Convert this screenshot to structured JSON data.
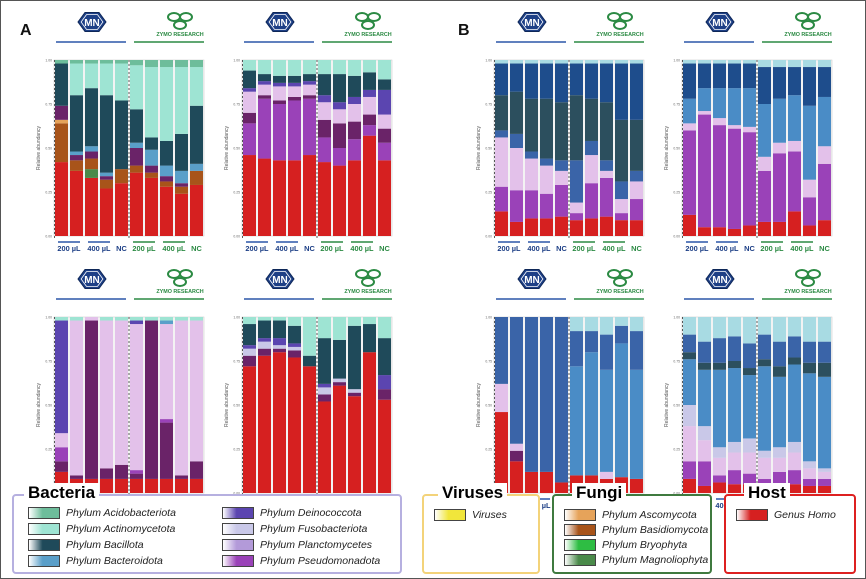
{
  "panel_labels": [
    "A",
    "B"
  ],
  "brand_labels": {
    "mn": "MN",
    "zymo": "ZYMO RESEARCH"
  },
  "ylabel": "Relative abundancy",
  "groups": [
    "200 µL",
    "400 µL",
    "NC",
    "200 µL",
    "400 µL",
    "NC"
  ],
  "colors": {
    "Phylum Acidobacteriota": "#6dbd9b",
    "Phylum Actinomycetota": "#9ee4d3",
    "Phylum Bacillota": "#1f4a5a",
    "Phylum Bacteroidota": "#5a9fc9",
    "Phylum Deinococcota": "#5b45b0",
    "Phylum Fusobacteriota": "#c9c8e8",
    "Phylum Planctomycetes": "#b39ad9",
    "Phylum Pseudomonadota": "#6a2368",
    "Phylum Pseudomonadota-2": "#9a42b8",
    "Phylum Pseudomonadota-3": "#e3c1ea",
    "Viruses": "#f1e63b",
    "Phylum Ascomycota": "#e6a35a",
    "Phylum Basidiomycota": "#a8541a",
    "Phylum Bryophyta": "#2ebd43",
    "Phylum Magnoliophyta": "#4a8a4a",
    "Genus Homo": "#d62020",
    "Fungi-1": "#1e4d8c",
    "Fungi-2": "#3a64a8",
    "Fungi-3": "#4a8cc6",
    "Fungi-4": "#2c4f5e",
    "Fungi-5": "#a8dbe3"
  },
  "legend": {
    "bacteria": {
      "title": "Bacteria",
      "items": [
        {
          "label": "Phylum Acidobacteriota",
          "color": "#6dbd9b"
        },
        {
          "label": "Phylum Actinomycetota",
          "color": "#9ee4d3"
        },
        {
          "label": "Phylum Bacillota",
          "color": "#1f4a5a"
        },
        {
          "label": "Phylum Bacteroidota",
          "color": "#5a9fc9"
        },
        {
          "label": "Phylum Deinococcota",
          "color": "#5b45b0"
        },
        {
          "label": "Phylum Fusobacteriota",
          "color": "#c9c8e8"
        },
        {
          "label": "Phylum Planctomycetes",
          "color": "#b39ad9"
        },
        {
          "label": "Phylum Pseudomonadota",
          "color": "#9a42b8"
        }
      ]
    },
    "viruses": {
      "title": "Viruses",
      "items": [
        {
          "label": "Viruses",
          "color": "#f1e63b"
        }
      ]
    },
    "fungi": {
      "title": "Fungi",
      "items": [
        {
          "label": "Phylum Ascomycota",
          "color": "#e6a35a"
        },
        {
          "label": "Phylum Basidiomycota",
          "color": "#a8541a"
        },
        {
          "label": "Phylum Bryophyta",
          "color": "#2ebd43"
        },
        {
          "label": "Phylum Magnoliophyta",
          "color": "#4a8a4a"
        }
      ]
    },
    "host": {
      "title": "Host",
      "items": [
        {
          "label": "Genus Homo",
          "color": "#d62020"
        }
      ]
    }
  },
  "chart_data": [
    {
      "type": "bar",
      "stacked": true,
      "panel": "A",
      "ylabel": "Relative abundancy",
      "ylim": [
        0,
        1
      ],
      "series": [
        {
          "name": "Genus Homo",
          "values": [
            0.42,
            0.37,
            0.33,
            0.27,
            0.3,
            0.36,
            0.33,
            0.28,
            0.24,
            0.29
          ]
        },
        {
          "name": "Phylum Magnoliophyta",
          "values": [
            0.0,
            0.0,
            0.05,
            0.0,
            0.0,
            0.0,
            0.0,
            0.0,
            0.0,
            0.0
          ]
        },
        {
          "name": "Phylum Basidiomycota",
          "values": [
            0.22,
            0.06,
            0.06,
            0.05,
            0.08,
            0.04,
            0.03,
            0.03,
            0.04,
            0.08
          ]
        },
        {
          "name": "Phylum Ascomycota",
          "values": [
            0.02,
            0.0,
            0.0,
            0.0,
            0.0,
            0.0,
            0.0,
            0.0,
            0.0,
            0.0
          ]
        },
        {
          "name": "Phylum Pseudomonadota",
          "values": [
            0.08,
            0.03,
            0.04,
            0.02,
            0.0,
            0.1,
            0.04,
            0.03,
            0.02,
            0.0
          ]
        },
        {
          "name": "Phylum Bacteroidota",
          "values": [
            0.0,
            0.02,
            0.03,
            0.02,
            0.0,
            0.03,
            0.09,
            0.06,
            0.07,
            0.04
          ]
        },
        {
          "name": "Phylum Bacillota",
          "values": [
            0.24,
            0.32,
            0.33,
            0.44,
            0.39,
            0.19,
            0.07,
            0.14,
            0.21,
            0.33
          ]
        },
        {
          "name": "Phylum Actinomycetota",
          "values": [
            0.0,
            0.18,
            0.14,
            0.18,
            0.21,
            0.25,
            0.4,
            0.42,
            0.38,
            0.22
          ]
        },
        {
          "name": "Phylum Acidobacteriota",
          "values": [
            0.02,
            0.02,
            0.02,
            0.02,
            0.02,
            0.03,
            0.04,
            0.04,
            0.04,
            0.04
          ]
        }
      ]
    },
    {
      "type": "bar",
      "stacked": true,
      "panel": "A",
      "ylabel": "Relative abundancy",
      "ylim": [
        0,
        1
      ],
      "series": [
        {
          "name": "Genus Homo",
          "values": [
            0.46,
            0.44,
            0.43,
            0.43,
            0.46,
            0.42,
            0.4,
            0.43,
            0.57,
            0.43
          ]
        },
        {
          "name": "Phylum Pseudomonadota-2",
          "values": [
            0.18,
            0.34,
            0.32,
            0.34,
            0.32,
            0.14,
            0.1,
            0.12,
            0.06,
            0.1
          ]
        },
        {
          "name": "Phylum Pseudomonadota",
          "values": [
            0.06,
            0.02,
            0.02,
            0.02,
            0.02,
            0.1,
            0.14,
            0.1,
            0.06,
            0.08
          ]
        },
        {
          "name": "Phylum Pseudomonadota-3",
          "values": [
            0.12,
            0.06,
            0.08,
            0.06,
            0.06,
            0.1,
            0.08,
            0.1,
            0.1,
            0.08
          ]
        },
        {
          "name": "Phylum Deinococcota",
          "values": [
            0.02,
            0.02,
            0.02,
            0.02,
            0.02,
            0.04,
            0.04,
            0.04,
            0.04,
            0.14
          ]
        },
        {
          "name": "Phylum Bacillota",
          "values": [
            0.1,
            0.04,
            0.04,
            0.04,
            0.04,
            0.12,
            0.16,
            0.12,
            0.1,
            0.06
          ]
        },
        {
          "name": "Phylum Actinomycetota",
          "values": [
            0.06,
            0.08,
            0.09,
            0.09,
            0.08,
            0.08,
            0.08,
            0.09,
            0.07,
            0.11
          ]
        }
      ]
    },
    {
      "type": "bar",
      "stacked": true,
      "panel": "A",
      "ylabel": "Relative abundancy",
      "ylim": [
        0,
        1
      ],
      "series": [
        {
          "name": "Genus Homo",
          "values": [
            0.12,
            0.08,
            0.08,
            0.08,
            0.08,
            0.08,
            0.08,
            0.08,
            0.08,
            0.08
          ]
        },
        {
          "name": "Phylum Pseudomonadota",
          "values": [
            0.06,
            0.02,
            0.9,
            0.06,
            0.08,
            0.03,
            0.9,
            0.32,
            0.02,
            0.1
          ]
        },
        {
          "name": "Phylum Pseudomonadota-2",
          "values": [
            0.08,
            0.0,
            0.0,
            0.0,
            0.0,
            0.02,
            0.0,
            0.02,
            0.0,
            0.0
          ]
        },
        {
          "name": "Phylum Pseudomonadota-3",
          "values": [
            0.08,
            0.88,
            0.02,
            0.84,
            0.82,
            0.83,
            0.0,
            0.54,
            0.88,
            0.8
          ]
        },
        {
          "name": "Phylum Deinococcota",
          "values": [
            0.64,
            0.0,
            0.0,
            0.0,
            0.0,
            0.02,
            0.0,
            0.0,
            0.0,
            0.0
          ]
        },
        {
          "name": "Phylum Bacteroidota",
          "values": [
            0.0,
            0.0,
            0.0,
            0.0,
            0.0,
            0.0,
            0.0,
            0.02,
            0.0,
            0.0
          ]
        },
        {
          "name": "Phylum Actinomycetota",
          "values": [
            0.02,
            0.02,
            0.0,
            0.02,
            0.02,
            0.02,
            0.02,
            0.02,
            0.02,
            0.02
          ]
        }
      ]
    },
    {
      "type": "bar",
      "stacked": true,
      "panel": "A",
      "ylabel": "Relative abundancy",
      "ylim": [
        0,
        1
      ],
      "series": [
        {
          "name": "Genus Homo",
          "values": [
            0.72,
            0.78,
            0.8,
            0.77,
            0.72,
            0.52,
            0.61,
            0.55,
            0.8,
            0.53
          ]
        },
        {
          "name": "Phylum Pseudomonadota",
          "values": [
            0.06,
            0.04,
            0.02,
            0.04,
            0.0,
            0.04,
            0.02,
            0.02,
            0.0,
            0.06
          ]
        },
        {
          "name": "Phylum Fusobacteriota",
          "values": [
            0.04,
            0.04,
            0.02,
            0.02,
            0.0,
            0.04,
            0.02,
            0.02,
            0.0,
            0.0
          ]
        },
        {
          "name": "Phylum Deinococcota",
          "values": [
            0.02,
            0.02,
            0.04,
            0.02,
            0.0,
            0.02,
            0.0,
            0.0,
            0.0,
            0.08
          ]
        },
        {
          "name": "Phylum Bacillota",
          "values": [
            0.12,
            0.1,
            0.1,
            0.1,
            0.06,
            0.26,
            0.22,
            0.36,
            0.16,
            0.21
          ]
        },
        {
          "name": "Phylum Actinomycetota",
          "values": [
            0.04,
            0.02,
            0.02,
            0.05,
            0.22,
            0.12,
            0.13,
            0.05,
            0.04,
            0.12
          ]
        }
      ]
    },
    {
      "type": "bar",
      "stacked": true,
      "panel": "B",
      "ylabel": "Relative abundancy",
      "ylim": [
        0,
        1
      ],
      "series": [
        {
          "name": "Genus Homo",
          "values": [
            0.14,
            0.08,
            0.1,
            0.1,
            0.11,
            0.09,
            0.1,
            0.11,
            0.09,
            0.09
          ]
        },
        {
          "name": "Phylum Pseudomonadota-2",
          "values": [
            0.14,
            0.18,
            0.16,
            0.14,
            0.18,
            0.04,
            0.2,
            0.22,
            0.04,
            0.12
          ]
        },
        {
          "name": "Phylum Pseudomonadota-3",
          "values": [
            0.28,
            0.24,
            0.18,
            0.16,
            0.08,
            0.06,
            0.16,
            0.04,
            0.08,
            0.1
          ]
        },
        {
          "name": "Fungi-2",
          "values": [
            0.04,
            0.08,
            0.04,
            0.04,
            0.06,
            0.24,
            0.08,
            0.06,
            0.1,
            0.06
          ]
        },
        {
          "name": "Fungi-4",
          "values": [
            0.2,
            0.24,
            0.3,
            0.34,
            0.33,
            0.37,
            0.24,
            0.33,
            0.35,
            0.29
          ]
        },
        {
          "name": "Fungi-1",
          "values": [
            0.18,
            0.16,
            0.2,
            0.2,
            0.22,
            0.18,
            0.2,
            0.22,
            0.32,
            0.32
          ]
        },
        {
          "name": "Fungi-5",
          "values": [
            0.02,
            0.02,
            0.02,
            0.02,
            0.02,
            0.02,
            0.02,
            0.02,
            0.02,
            0.02
          ]
        }
      ]
    },
    {
      "type": "bar",
      "stacked": true,
      "panel": "B",
      "ylabel": "Relative abundancy",
      "ylim": [
        0,
        1
      ],
      "series": [
        {
          "name": "Genus Homo",
          "values": [
            0.12,
            0.05,
            0.05,
            0.04,
            0.06,
            0.08,
            0.08,
            0.14,
            0.06,
            0.09
          ]
        },
        {
          "name": "Phylum Pseudomonadota-2",
          "values": [
            0.48,
            0.64,
            0.58,
            0.57,
            0.53,
            0.29,
            0.39,
            0.34,
            0.16,
            0.32
          ]
        },
        {
          "name": "Phylum Pseudomonadota-3",
          "values": [
            0.04,
            0.02,
            0.04,
            0.02,
            0.03,
            0.08,
            0.06,
            0.06,
            0.1,
            0.1
          ]
        },
        {
          "name": "Fungi-3",
          "values": [
            0.14,
            0.13,
            0.17,
            0.21,
            0.22,
            0.3,
            0.25,
            0.26,
            0.42,
            0.28
          ]
        },
        {
          "name": "Fungi-1",
          "values": [
            0.2,
            0.14,
            0.14,
            0.14,
            0.14,
            0.21,
            0.18,
            0.16,
            0.22,
            0.17
          ]
        },
        {
          "name": "Fungi-5",
          "values": [
            0.02,
            0.02,
            0.02,
            0.02,
            0.02,
            0.04,
            0.04,
            0.04,
            0.04,
            0.04
          ]
        }
      ]
    },
    {
      "type": "bar",
      "stacked": true,
      "panel": "B",
      "ylabel": "Relative abundancy",
      "ylim": [
        0,
        1
      ],
      "series": [
        {
          "name": "Genus Homo",
          "values": [
            0.46,
            0.18,
            0.12,
            0.12,
            0.06,
            0.1,
            0.1,
            0.08,
            0.09,
            0.08
          ]
        },
        {
          "name": "Phylum Pseudomonadota",
          "values": [
            0.0,
            0.06,
            0.0,
            0.0,
            0.0,
            0.0,
            0.0,
            0.0,
            0.0,
            0.0
          ]
        },
        {
          "name": "Phylum Pseudomonadota-3",
          "values": [
            0.16,
            0.04,
            0.0,
            0.0,
            0.0,
            0.0,
            0.0,
            0.04,
            0.0,
            0.0
          ]
        },
        {
          "name": "Fungi-3",
          "values": [
            0.0,
            0.0,
            0.0,
            0.0,
            0.0,
            0.62,
            0.7,
            0.58,
            0.76,
            0.62
          ]
        },
        {
          "name": "Fungi-2",
          "values": [
            0.38,
            0.72,
            0.88,
            0.88,
            0.94,
            0.2,
            0.12,
            0.2,
            0.1,
            0.22
          ]
        },
        {
          "name": "Fungi-5",
          "values": [
            0.0,
            0.0,
            0.0,
            0.0,
            0.0,
            0.08,
            0.08,
            0.1,
            0.05,
            0.08
          ]
        }
      ]
    },
    {
      "type": "bar",
      "stacked": true,
      "panel": "B",
      "ylabel": "Relative abundancy",
      "ylim": [
        0,
        1
      ],
      "series": [
        {
          "name": "Genus Homo",
          "values": [
            0.08,
            0.04,
            0.06,
            0.05,
            0.05,
            0.04,
            0.04,
            0.05,
            0.04,
            0.04
          ]
        },
        {
          "name": "Phylum Pseudomonadota-2",
          "values": [
            0.1,
            0.14,
            0.04,
            0.08,
            0.06,
            0.04,
            0.08,
            0.08,
            0.04,
            0.04
          ]
        },
        {
          "name": "Phylum Pseudomonadota-3",
          "values": [
            0.2,
            0.12,
            0.1,
            0.1,
            0.12,
            0.12,
            0.08,
            0.1,
            0.06,
            0.04
          ]
        },
        {
          "name": "Phylum Fusobacteriota",
          "values": [
            0.12,
            0.08,
            0.06,
            0.06,
            0.08,
            0.04,
            0.06,
            0.06,
            0.04,
            0.02
          ]
        },
        {
          "name": "Fungi-3",
          "values": [
            0.26,
            0.32,
            0.44,
            0.42,
            0.36,
            0.48,
            0.4,
            0.44,
            0.5,
            0.52
          ]
        },
        {
          "name": "Fungi-4",
          "values": [
            0.04,
            0.04,
            0.04,
            0.04,
            0.04,
            0.04,
            0.06,
            0.04,
            0.06,
            0.08
          ]
        },
        {
          "name": "Fungi-2",
          "values": [
            0.1,
            0.12,
            0.14,
            0.14,
            0.14,
            0.14,
            0.14,
            0.12,
            0.12,
            0.12
          ]
        },
        {
          "name": "Fungi-5",
          "values": [
            0.1,
            0.14,
            0.12,
            0.11,
            0.15,
            0.1,
            0.14,
            0.11,
            0.14,
            0.14
          ]
        }
      ]
    }
  ]
}
